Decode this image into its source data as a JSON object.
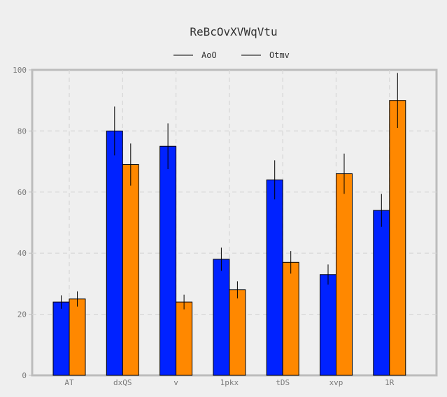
{
  "chart_data": {
    "type": "bar",
    "title": "ReBcOvXVWqVtu",
    "xlabel": "",
    "ylabel": "",
    "categories": [
      "AT",
      "dxQS",
      "v",
      "1pkx",
      "tDS",
      "xvp",
      "1R"
    ],
    "series": [
      {
        "name": "AoO",
        "color": "#0022ff",
        "values": [
          24,
          80,
          75,
          38,
          64,
          33,
          54
        ],
        "errors": [
          2.2,
          8.0,
          7.5,
          3.8,
          6.4,
          3.3,
          5.4
        ]
      },
      {
        "name": "Otmv",
        "color": "#ff8800",
        "values": [
          25,
          69,
          24,
          28,
          37,
          66,
          90
        ],
        "errors": [
          2.5,
          6.9,
          2.4,
          2.8,
          3.7,
          6.6,
          9.0
        ]
      }
    ],
    "ylim": [
      0,
      100
    ],
    "yticks": [
      0,
      20,
      40,
      60,
      80,
      100
    ],
    "grid": true,
    "legend_position": "top-center"
  }
}
